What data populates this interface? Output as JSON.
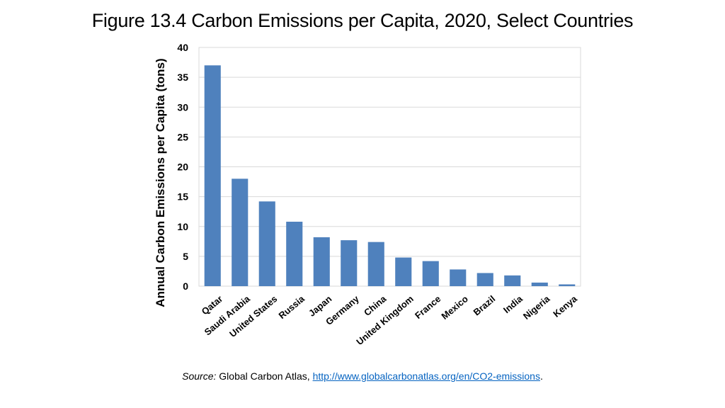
{
  "title": "Figure 13.4 Carbon Emissions per Capita, 2020, Select Countries",
  "source": {
    "label": "Source:",
    "text": "Global Carbon Atlas,",
    "link": "http://www.globalcarbonatlas.org/en/CO2-emissions",
    "end": "."
  },
  "colors": {
    "bar": "#4f81bd",
    "grid": "#d9d9d9",
    "link": "#0563c1"
  },
  "chart_data": {
    "type": "bar",
    "title": "",
    "xlabel": "",
    "ylabel": "Annual Carbon Emissions per Capita (tons)",
    "ylim": [
      0,
      40
    ],
    "yticks": [
      0,
      5,
      10,
      15,
      20,
      25,
      30,
      35,
      40
    ],
    "grid": true,
    "categories": [
      "Qatar",
      "Saudi Arabia",
      "United States",
      "Russia",
      "Japan",
      "Germany",
      "China",
      "United Kingdom",
      "France",
      "Mexico",
      "Brazil",
      "India",
      "Nigeria",
      "Kenya"
    ],
    "values": [
      37.0,
      18.0,
      14.2,
      10.8,
      8.2,
      7.7,
      7.4,
      4.8,
      4.2,
      2.8,
      2.2,
      1.8,
      0.6,
      0.3
    ]
  }
}
